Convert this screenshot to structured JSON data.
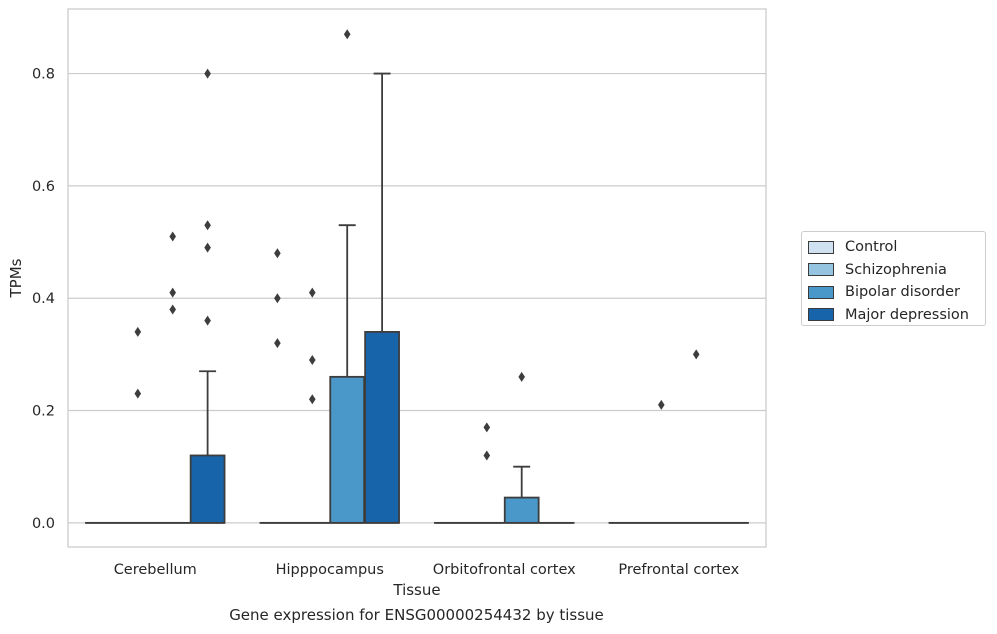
{
  "caption": "Gene expression for ENSG00000254432 by tissue",
  "chart_data": {
    "type": "box",
    "xlabel": "Tissue",
    "ylabel": "TPMs",
    "ylim": [
      -0.043,
      0.915
    ],
    "yticks": [
      "0.0",
      "0.2",
      "0.4",
      "0.6",
      "0.8"
    ],
    "ytick_values": [
      0.0,
      0.2,
      0.4,
      0.6,
      0.8
    ],
    "grid": "horizontal",
    "legend_position": "right",
    "categories": [
      "Cerebellum",
      "Hipppocampus",
      "Orbitofrontal cortex",
      "Prefrontal cortex"
    ],
    "series": [
      {
        "name": "Control",
        "color": "#d0e1f2",
        "boxes": [
          {
            "q1": 0,
            "median": 0,
            "q3": 0,
            "whislo": 0,
            "whishi": 0,
            "fliers": []
          },
          {
            "q1": 0,
            "median": 0,
            "q3": 0,
            "whislo": 0,
            "whishi": 0,
            "fliers": [
              0.32,
              0.4,
              0.48
            ]
          },
          {
            "q1": 0,
            "median": 0,
            "q3": 0,
            "whislo": 0,
            "whishi": 0,
            "fliers": []
          },
          {
            "q1": 0,
            "median": 0,
            "q3": 0,
            "whislo": 0,
            "whishi": 0,
            "fliers": []
          }
        ]
      },
      {
        "name": "Schizophrenia",
        "color": "#94c4df",
        "boxes": [
          {
            "q1": 0,
            "median": 0,
            "q3": 0,
            "whislo": 0,
            "whishi": 0,
            "fliers": [
              0.23,
              0.34
            ]
          },
          {
            "q1": 0,
            "median": 0,
            "q3": 0,
            "whislo": 0,
            "whishi": 0,
            "fliers": [
              0.22,
              0.29,
              0.41
            ]
          },
          {
            "q1": 0,
            "median": 0,
            "q3": 0,
            "whislo": 0,
            "whishi": 0,
            "fliers": [
              0.12,
              0.17
            ]
          },
          {
            "q1": 0,
            "median": 0,
            "q3": 0,
            "whislo": 0,
            "whishi": 0,
            "fliers": [
              0.21
            ]
          }
        ]
      },
      {
        "name": "Bipolar disorder",
        "color": "#4a98c9",
        "boxes": [
          {
            "q1": 0,
            "median": 0,
            "q3": 0,
            "whislo": 0,
            "whishi": 0,
            "fliers": [
              0.38,
              0.41,
              0.51
            ]
          },
          {
            "q1": 0,
            "median": 0,
            "q3": 0.26,
            "whislo": 0,
            "whishi": 0.53,
            "fliers": [
              0.87
            ]
          },
          {
            "q1": 0,
            "median": 0,
            "q3": 0.045,
            "whislo": 0,
            "whishi": 0.1,
            "fliers": [
              0.26
            ]
          },
          {
            "q1": 0,
            "median": 0,
            "q3": 0,
            "whislo": 0,
            "whishi": 0,
            "fliers": [
              0.3
            ]
          }
        ]
      },
      {
        "name": "Major depression",
        "color": "#1764ab",
        "boxes": [
          {
            "q1": 0,
            "median": 0,
            "q3": 0.12,
            "whislo": 0,
            "whishi": 0.27,
            "fliers": [
              0.36,
              0.49,
              0.53,
              0.8
            ]
          },
          {
            "q1": 0,
            "median": 0,
            "q3": 0.34,
            "whislo": 0,
            "whishi": 0.8,
            "fliers": []
          },
          {
            "q1": 0,
            "median": 0,
            "q3": 0,
            "whislo": 0,
            "whishi": 0,
            "fliers": []
          },
          {
            "q1": 0,
            "median": 0,
            "q3": 0,
            "whislo": 0,
            "whishi": 0,
            "fliers": []
          }
        ]
      }
    ]
  }
}
